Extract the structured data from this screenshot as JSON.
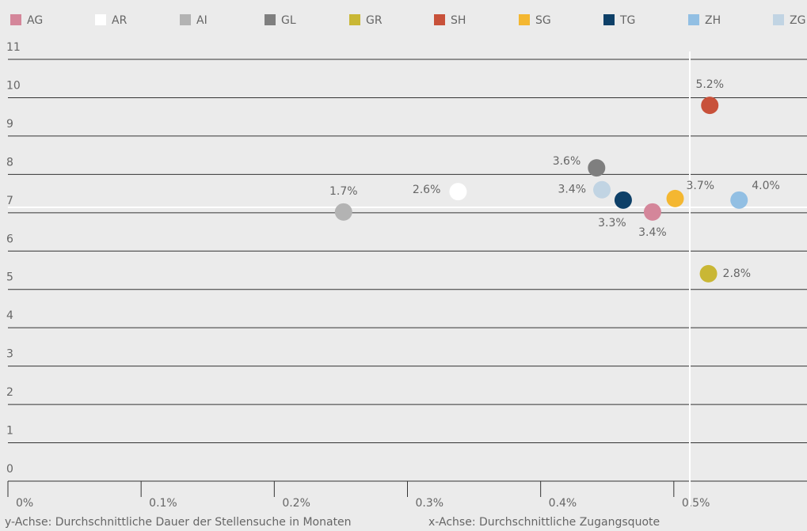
{
  "chart_data": {
    "type": "scatter",
    "x_caption": "x-Achse: Durchschnittliche Zugangsquote",
    "y_caption": "y-Achse: Durchschnittliche Dauer der Stellensuche in Monaten",
    "xlim": [
      0,
      0.6
    ],
    "xticks": [
      {
        "value": 0,
        "label": "0%"
      },
      {
        "value": 0.1,
        "label": "0.1%"
      },
      {
        "value": 0.2,
        "label": "0.2%"
      },
      {
        "value": 0.3,
        "label": "0.3%"
      },
      {
        "value": 0.4,
        "label": "0.4%"
      },
      {
        "value": 0.5,
        "label": "0.5%"
      }
    ],
    "ylim": [
      0,
      11
    ],
    "yticks": [
      0,
      1,
      2,
      3,
      4,
      5,
      6,
      7,
      8,
      9,
      10,
      11
    ],
    "grid": true,
    "reference_x": 0.512,
    "reference_y": 7.14,
    "series": [
      {
        "name": "AG",
        "color": "#d4869a",
        "x": [
          0.484
        ],
        "values": [
          7.02
        ],
        "label": "3.4%"
      },
      {
        "name": "AR",
        "color": "#ffffff",
        "x": [
          0.338
        ],
        "values": [
          7.55
        ],
        "label": "2.6%"
      },
      {
        "name": "AI",
        "color": "#b3b3b3",
        "x": [
          0.252
        ],
        "values": [
          7.02
        ],
        "label": "1.7%"
      },
      {
        "name": "GL",
        "color": "#7f7f7f",
        "x": [
          0.442
        ],
        "values": [
          8.17
        ],
        "label": "3.6%"
      },
      {
        "name": "GR",
        "color": "#c9b735",
        "x": [
          0.526
        ],
        "values": [
          5.41
        ],
        "label": "2.8%"
      },
      {
        "name": "SH",
        "color": "#c8513a",
        "x": [
          0.527
        ],
        "values": [
          9.8
        ],
        "label": "5.2%"
      },
      {
        "name": "SG",
        "color": "#f4b731",
        "x": [
          0.501
        ],
        "values": [
          7.37
        ],
        "label": "3.7%"
      },
      {
        "name": "TG",
        "color": "#0e4068",
        "x": [
          0.462
        ],
        "values": [
          7.33
        ],
        "label": "3.3%"
      },
      {
        "name": "ZH",
        "color": "#92bfe3",
        "x": [
          0.549
        ],
        "values": [
          7.33
        ],
        "label": "4.0%"
      },
      {
        "name": "ZG",
        "color": "#c1d4e3",
        "x": [
          0.446
        ],
        "values": [
          7.6
        ],
        "label": "3.4%"
      }
    ]
  }
}
